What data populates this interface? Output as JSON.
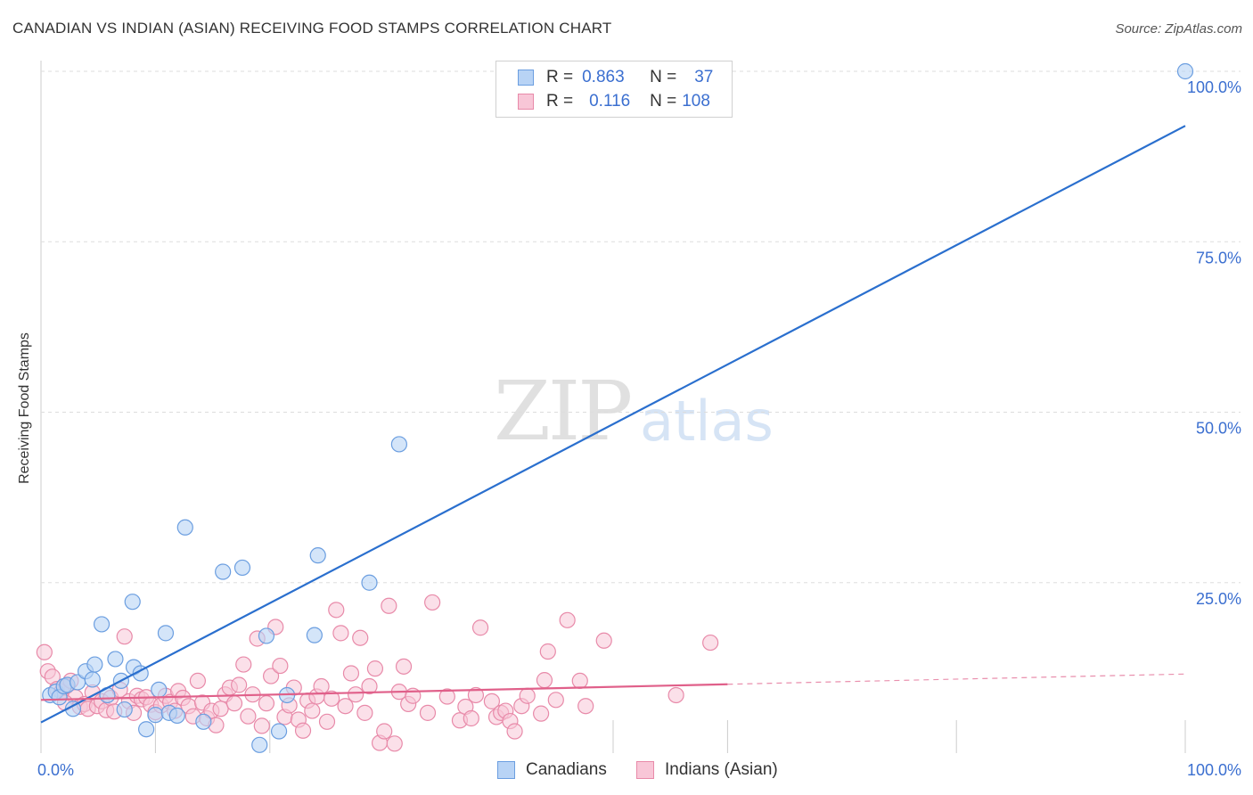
{
  "title": "CANADIAN VS INDIAN (ASIAN) RECEIVING FOOD STAMPS CORRELATION CHART",
  "source": "Source: ZipAtlas.com",
  "watermark": {
    "zip": "ZIP",
    "atlas": "atlas"
  },
  "legend": {
    "rows": [
      {
        "r_label": "R =",
        "r_value": "0.863",
        "n_label": "N =",
        "n_value": "37"
      },
      {
        "r_label": "R =",
        "r_value": "0.116",
        "n_label": "N =",
        "n_value": "108"
      }
    ]
  },
  "bottom_legend": {
    "canadians": "Canadians",
    "indians": "Indians (Asian)"
  },
  "colors": {
    "blue_fill": "#b8d3f5",
    "blue_stroke": "#6b9ee0",
    "blue_line": "#2a6fce",
    "pink_fill": "#f8c6d7",
    "pink_stroke": "#e88aa9",
    "pink_line": "#e0608a",
    "tick_text": "#3b6fd0",
    "grid": "#dddddd"
  },
  "chart_data": {
    "type": "scatter",
    "title": "CANADIAN VS INDIAN (ASIAN) RECEIVING FOOD STAMPS CORRELATION CHART",
    "xlabel": "",
    "ylabel": "Receiving Food Stamps",
    "xlim": [
      0,
      100
    ],
    "ylim": [
      0,
      100
    ],
    "x_tick_labels": [
      "0.0%",
      "100.0%"
    ],
    "y_ticks": [
      25,
      50,
      75,
      100
    ],
    "y_tick_labels": [
      "25.0%",
      "50.0%",
      "75.0%",
      "100.0%"
    ],
    "grid": true,
    "series": [
      {
        "name": "Canadians",
        "r": 0.863,
        "n": 37,
        "trend": {
          "x": [
            0,
            100
          ],
          "y": [
            4.5,
            92
          ]
        },
        "points": [
          {
            "x": 0.8,
            "y": 8.5
          },
          {
            "x": 1.3,
            "y": 9.0
          },
          {
            "x": 1.6,
            "y": 8.2
          },
          {
            "x": 2.0,
            "y": 9.8
          },
          {
            "x": 2.3,
            "y": 10.0
          },
          {
            "x": 2.8,
            "y": 6.5
          },
          {
            "x": 3.2,
            "y": 10.4
          },
          {
            "x": 3.9,
            "y": 12.0
          },
          {
            "x": 4.5,
            "y": 10.8
          },
          {
            "x": 4.7,
            "y": 13.0
          },
          {
            "x": 5.3,
            "y": 18.9
          },
          {
            "x": 5.8,
            "y": 8.5
          },
          {
            "x": 6.5,
            "y": 13.8
          },
          {
            "x": 7.0,
            "y": 10.6
          },
          {
            "x": 7.3,
            "y": 6.4
          },
          {
            "x": 8.1,
            "y": 12.6
          },
          {
            "x": 8.0,
            "y": 22.2
          },
          {
            "x": 8.7,
            "y": 11.7
          },
          {
            "x": 9.2,
            "y": 3.5
          },
          {
            "x": 10.0,
            "y": 5.6
          },
          {
            "x": 10.3,
            "y": 9.3
          },
          {
            "x": 10.9,
            "y": 17.6
          },
          {
            "x": 11.2,
            "y": 5.9
          },
          {
            "x": 11.9,
            "y": 5.5
          },
          {
            "x": 12.6,
            "y": 33.1
          },
          {
            "x": 14.2,
            "y": 4.6
          },
          {
            "x": 15.9,
            "y": 26.6
          },
          {
            "x": 17.6,
            "y": 27.2
          },
          {
            "x": 19.1,
            "y": 1.2
          },
          {
            "x": 19.7,
            "y": 17.2
          },
          {
            "x": 20.8,
            "y": 3.2
          },
          {
            "x": 21.5,
            "y": 8.5
          },
          {
            "x": 23.9,
            "y": 17.3
          },
          {
            "x": 24.2,
            "y": 29.0
          },
          {
            "x": 28.7,
            "y": 25.0
          },
          {
            "x": 31.3,
            "y": 45.3
          },
          {
            "x": 100.0,
            "y": 100.0
          }
        ]
      },
      {
        "name": "Indians (Asian)",
        "r": 0.116,
        "n": 108,
        "trend": {
          "x": [
            0,
            60
          ],
          "y": [
            7.8,
            10.1
          ],
          "dashed_to": {
            "x": 100,
            "y": 11.6
          }
        },
        "points": [
          {
            "x": 0.3,
            "y": 14.8
          },
          {
            "x": 0.6,
            "y": 12.0
          },
          {
            "x": 1.0,
            "y": 11.2
          },
          {
            "x": 1.4,
            "y": 9.4
          },
          {
            "x": 1.8,
            "y": 9.0
          },
          {
            "x": 2.2,
            "y": 9.8
          },
          {
            "x": 2.6,
            "y": 10.6
          },
          {
            "x": 3.0,
            "y": 8.2
          },
          {
            "x": 3.4,
            "y": 6.8
          },
          {
            "x": 3.8,
            "y": 7.2
          },
          {
            "x": 4.1,
            "y": 6.5
          },
          {
            "x": 4.5,
            "y": 8.9
          },
          {
            "x": 4.9,
            "y": 6.9
          },
          {
            "x": 5.3,
            "y": 7.6
          },
          {
            "x": 5.7,
            "y": 6.3
          },
          {
            "x": 6.1,
            "y": 8.1
          },
          {
            "x": 6.4,
            "y": 6.1
          },
          {
            "x": 6.9,
            "y": 9.3
          },
          {
            "x": 7.3,
            "y": 17.1
          },
          {
            "x": 7.7,
            "y": 7.6
          },
          {
            "x": 8.1,
            "y": 5.9
          },
          {
            "x": 8.4,
            "y": 8.4
          },
          {
            "x": 8.8,
            "y": 7.9
          },
          {
            "x": 9.2,
            "y": 8.2
          },
          {
            "x": 9.6,
            "y": 7.1
          },
          {
            "x": 10.0,
            "y": 6.0
          },
          {
            "x": 10.5,
            "y": 7.0
          },
          {
            "x": 10.9,
            "y": 8.4
          },
          {
            "x": 11.3,
            "y": 7.5
          },
          {
            "x": 11.7,
            "y": 6.2
          },
          {
            "x": 12.0,
            "y": 9.1
          },
          {
            "x": 12.4,
            "y": 8.1
          },
          {
            "x": 12.9,
            "y": 6.9
          },
          {
            "x": 13.3,
            "y": 5.4
          },
          {
            "x": 13.7,
            "y": 10.6
          },
          {
            "x": 14.1,
            "y": 7.4
          },
          {
            "x": 14.5,
            "y": 5.1
          },
          {
            "x": 14.9,
            "y": 6.2
          },
          {
            "x": 15.3,
            "y": 4.1
          },
          {
            "x": 15.7,
            "y": 6.5
          },
          {
            "x": 16.1,
            "y": 8.6
          },
          {
            "x": 16.5,
            "y": 9.6
          },
          {
            "x": 16.9,
            "y": 7.3
          },
          {
            "x": 17.3,
            "y": 10.0
          },
          {
            "x": 17.7,
            "y": 13.0
          },
          {
            "x": 18.1,
            "y": 5.4
          },
          {
            "x": 18.5,
            "y": 8.6
          },
          {
            "x": 18.9,
            "y": 16.8
          },
          {
            "x": 19.3,
            "y": 4.0
          },
          {
            "x": 19.7,
            "y": 7.3
          },
          {
            "x": 20.1,
            "y": 11.3
          },
          {
            "x": 20.5,
            "y": 18.5
          },
          {
            "x": 20.9,
            "y": 12.8
          },
          {
            "x": 21.3,
            "y": 5.3
          },
          {
            "x": 21.7,
            "y": 7.0
          },
          {
            "x": 22.1,
            "y": 9.6
          },
          {
            "x": 22.5,
            "y": 4.9
          },
          {
            "x": 22.9,
            "y": 3.3
          },
          {
            "x": 23.3,
            "y": 7.7
          },
          {
            "x": 23.7,
            "y": 6.2
          },
          {
            "x": 24.1,
            "y": 8.3
          },
          {
            "x": 24.5,
            "y": 9.8
          },
          {
            "x": 25.0,
            "y": 4.6
          },
          {
            "x": 25.4,
            "y": 8.0
          },
          {
            "x": 25.8,
            "y": 21.0
          },
          {
            "x": 26.2,
            "y": 17.6
          },
          {
            "x": 26.6,
            "y": 6.9
          },
          {
            "x": 27.1,
            "y": 11.7
          },
          {
            "x": 27.5,
            "y": 8.6
          },
          {
            "x": 27.9,
            "y": 16.9
          },
          {
            "x": 28.3,
            "y": 5.9
          },
          {
            "x": 28.7,
            "y": 9.8
          },
          {
            "x": 29.2,
            "y": 12.4
          },
          {
            "x": 29.6,
            "y": 1.5
          },
          {
            "x": 30.0,
            "y": 3.2
          },
          {
            "x": 30.4,
            "y": 21.6
          },
          {
            "x": 30.9,
            "y": 1.4
          },
          {
            "x": 31.3,
            "y": 9.0
          },
          {
            "x": 31.7,
            "y": 12.7
          },
          {
            "x": 32.1,
            "y": 7.2
          },
          {
            "x": 32.5,
            "y": 8.4
          },
          {
            "x": 33.8,
            "y": 5.9
          },
          {
            "x": 34.2,
            "y": 22.1
          },
          {
            "x": 35.5,
            "y": 8.3
          },
          {
            "x": 36.6,
            "y": 4.8
          },
          {
            "x": 37.1,
            "y": 6.8
          },
          {
            "x": 37.6,
            "y": 5.1
          },
          {
            "x": 38.0,
            "y": 8.5
          },
          {
            "x": 38.4,
            "y": 18.4
          },
          {
            "x": 39.4,
            "y": 7.6
          },
          {
            "x": 39.8,
            "y": 5.3
          },
          {
            "x": 40.2,
            "y": 5.9
          },
          {
            "x": 40.6,
            "y": 6.2
          },
          {
            "x": 41.0,
            "y": 4.7
          },
          {
            "x": 41.4,
            "y": 3.2
          },
          {
            "x": 42.0,
            "y": 6.9
          },
          {
            "x": 42.5,
            "y": 8.4
          },
          {
            "x": 43.7,
            "y": 5.8
          },
          {
            "x": 44.0,
            "y": 10.7
          },
          {
            "x": 44.3,
            "y": 14.9
          },
          {
            "x": 45.0,
            "y": 7.8
          },
          {
            "x": 46.0,
            "y": 19.5
          },
          {
            "x": 47.1,
            "y": 10.6
          },
          {
            "x": 47.6,
            "y": 6.9
          },
          {
            "x": 49.2,
            "y": 16.5
          },
          {
            "x": 55.5,
            "y": 8.5
          },
          {
            "x": 58.5,
            "y": 16.2
          },
          {
            "x": 2.1,
            "y": 7.4
          }
        ]
      }
    ]
  }
}
